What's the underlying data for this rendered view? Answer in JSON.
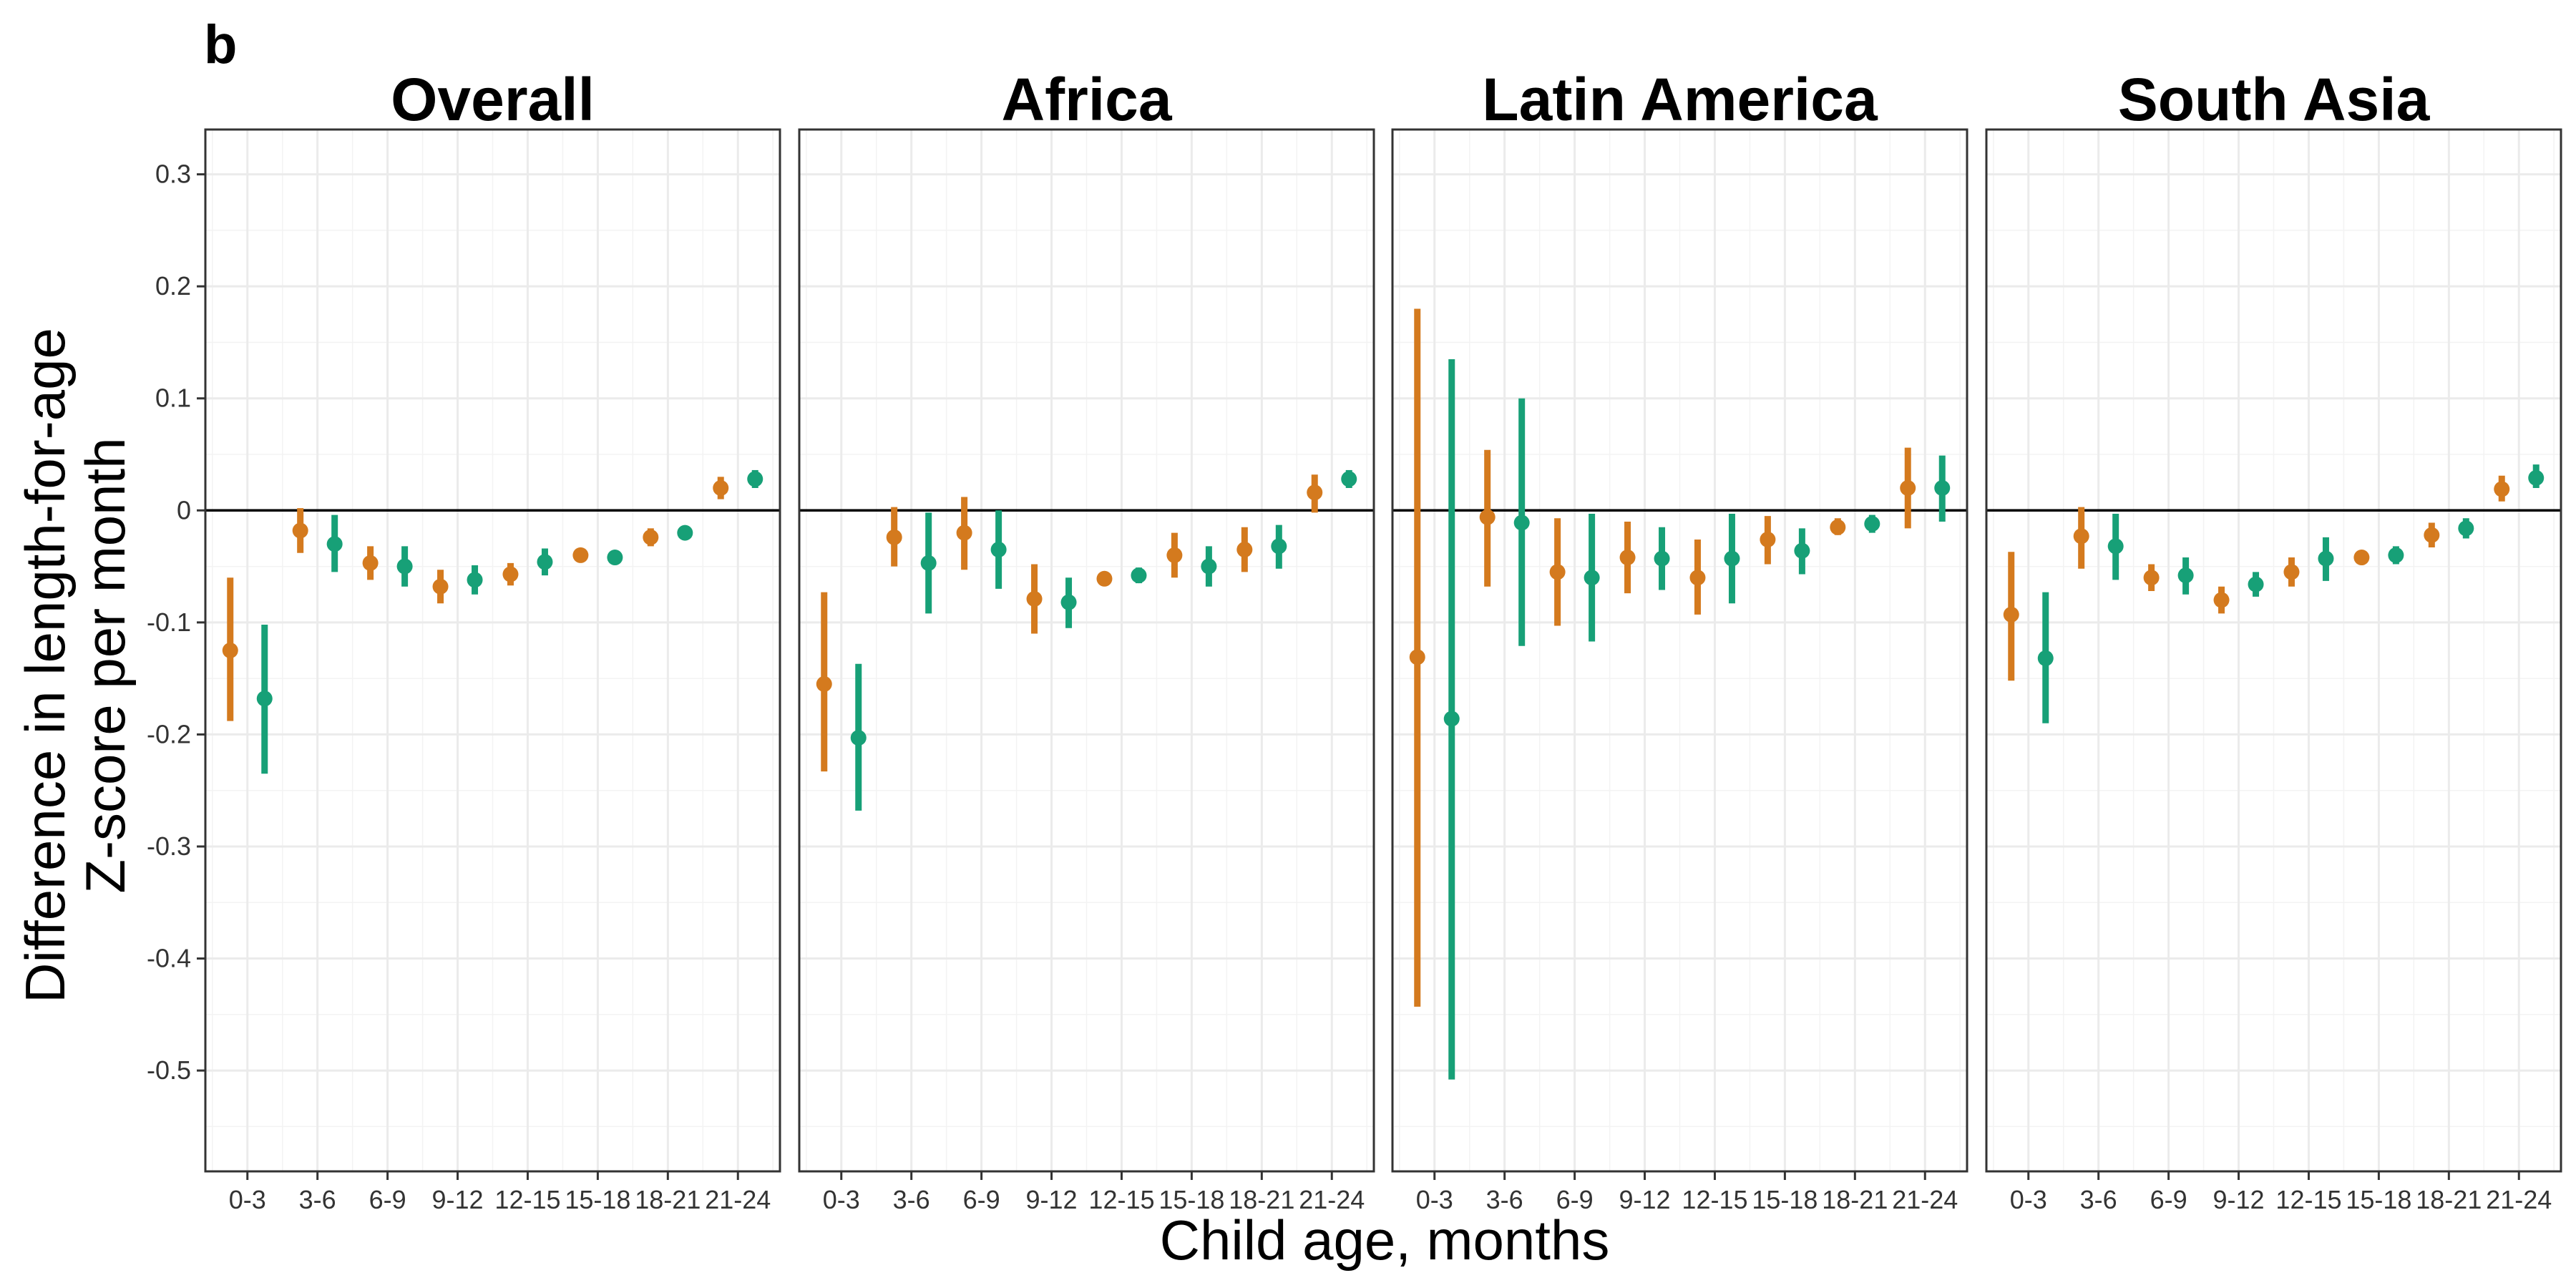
{
  "panel_label": "b",
  "xlabel": "Child age, months",
  "ylabel_line1": "Difference in length-for-age",
  "ylabel_line2": "Z-score per month",
  "colors": {
    "series1": "#d47a1e",
    "series2": "#17a077"
  },
  "chart_data": {
    "type": "scatter",
    "categories": [
      "0-3",
      "3-6",
      "6-9",
      "9-12",
      "12-15",
      "15-18",
      "18-21",
      "21-24"
    ],
    "ylim": [
      -0.59,
      0.34
    ],
    "yticks": [
      0.3,
      0.2,
      0.1,
      0,
      -0.1,
      -0.2,
      -0.3,
      -0.4,
      -0.5
    ],
    "ytick_labels": [
      "0.3",
      "0.2",
      "0.1",
      "0",
      "-0.1",
      "-0.2",
      "-0.3",
      "-0.4",
      "-0.5"
    ],
    "reference_line": 0,
    "grid": true,
    "panels": [
      {
        "title": "Overall",
        "series": [
          {
            "estimate": [
              -0.125,
              -0.018,
              -0.047,
              -0.068,
              -0.057,
              -0.04,
              -0.024,
              0.02
            ],
            "lower": [
              -0.188,
              -0.038,
              -0.062,
              -0.083,
              -0.067,
              -0.046,
              -0.032,
              0.01
            ],
            "upper": [
              -0.06,
              0.002,
              -0.032,
              -0.053,
              -0.047,
              -0.034,
              -0.016,
              0.03
            ]
          },
          {
            "estimate": [
              -0.168,
              -0.03,
              -0.05,
              -0.062,
              -0.046,
              -0.042,
              -0.02,
              0.028
            ],
            "lower": [
              -0.235,
              -0.055,
              -0.068,
              -0.075,
              -0.058,
              -0.048,
              -0.026,
              0.02
            ],
            "upper": [
              -0.102,
              -0.004,
              -0.032,
              -0.049,
              -0.034,
              -0.036,
              -0.014,
              0.036
            ]
          }
        ]
      },
      {
        "title": "Africa",
        "series": [
          {
            "estimate": [
              -0.155,
              -0.024,
              -0.02,
              -0.079,
              -0.061,
              -0.04,
              -0.035,
              0.016
            ],
            "lower": [
              -0.233,
              -0.05,
              -0.053,
              -0.11,
              -0.066,
              -0.06,
              -0.055,
              -0.002
            ],
            "upper": [
              -0.073,
              0.003,
              0.012,
              -0.048,
              -0.056,
              -0.02,
              -0.015,
              0.032
            ]
          },
          {
            "estimate": [
              -0.203,
              -0.047,
              -0.035,
              -0.082,
              -0.058,
              -0.05,
              -0.032,
              0.028
            ],
            "lower": [
              -0.268,
              -0.092,
              -0.07,
              -0.105,
              -0.065,
              -0.068,
              -0.052,
              0.02
            ],
            "upper": [
              -0.137,
              -0.002,
              0.0,
              -0.06,
              -0.051,
              -0.032,
              -0.013,
              0.036
            ]
          }
        ]
      },
      {
        "title": "Latin America",
        "series": [
          {
            "estimate": [
              -0.131,
              -0.006,
              -0.055,
              -0.042,
              -0.06,
              -0.026,
              -0.015,
              0.02
            ],
            "lower": [
              -0.443,
              -0.068,
              -0.103,
              -0.074,
              -0.093,
              -0.048,
              -0.022,
              -0.016
            ],
            "upper": [
              0.18,
              0.054,
              -0.007,
              -0.01,
              -0.026,
              -0.005,
              -0.007,
              0.056
            ]
          },
          {
            "estimate": [
              -0.186,
              -0.011,
              -0.06,
              -0.043,
              -0.043,
              -0.036,
              -0.012,
              0.02
            ],
            "lower": [
              -0.508,
              -0.121,
              -0.117,
              -0.071,
              -0.083,
              -0.057,
              -0.02,
              -0.01
            ],
            "upper": [
              0.135,
              0.1,
              -0.003,
              -0.015,
              -0.003,
              -0.016,
              -0.004,
              0.049
            ]
          }
        ]
      },
      {
        "title": "South Asia",
        "series": [
          {
            "estimate": [
              -0.093,
              -0.023,
              -0.06,
              -0.08,
              -0.055,
              -0.042,
              -0.022,
              0.019
            ],
            "lower": [
              -0.152,
              -0.052,
              -0.072,
              -0.092,
              -0.068,
              -0.048,
              -0.033,
              0.008
            ],
            "upper": [
              -0.037,
              0.003,
              -0.048,
              -0.068,
              -0.042,
              -0.036,
              -0.011,
              0.031
            ]
          },
          {
            "estimate": [
              -0.132,
              -0.032,
              -0.058,
              -0.066,
              -0.043,
              -0.04,
              -0.016,
              0.029
            ],
            "lower": [
              -0.19,
              -0.062,
              -0.075,
              -0.077,
              -0.063,
              -0.048,
              -0.025,
              0.02
            ],
            "upper": [
              -0.073,
              -0.003,
              -0.042,
              -0.055,
              -0.024,
              -0.032,
              -0.007,
              0.041
            ]
          }
        ]
      }
    ]
  }
}
